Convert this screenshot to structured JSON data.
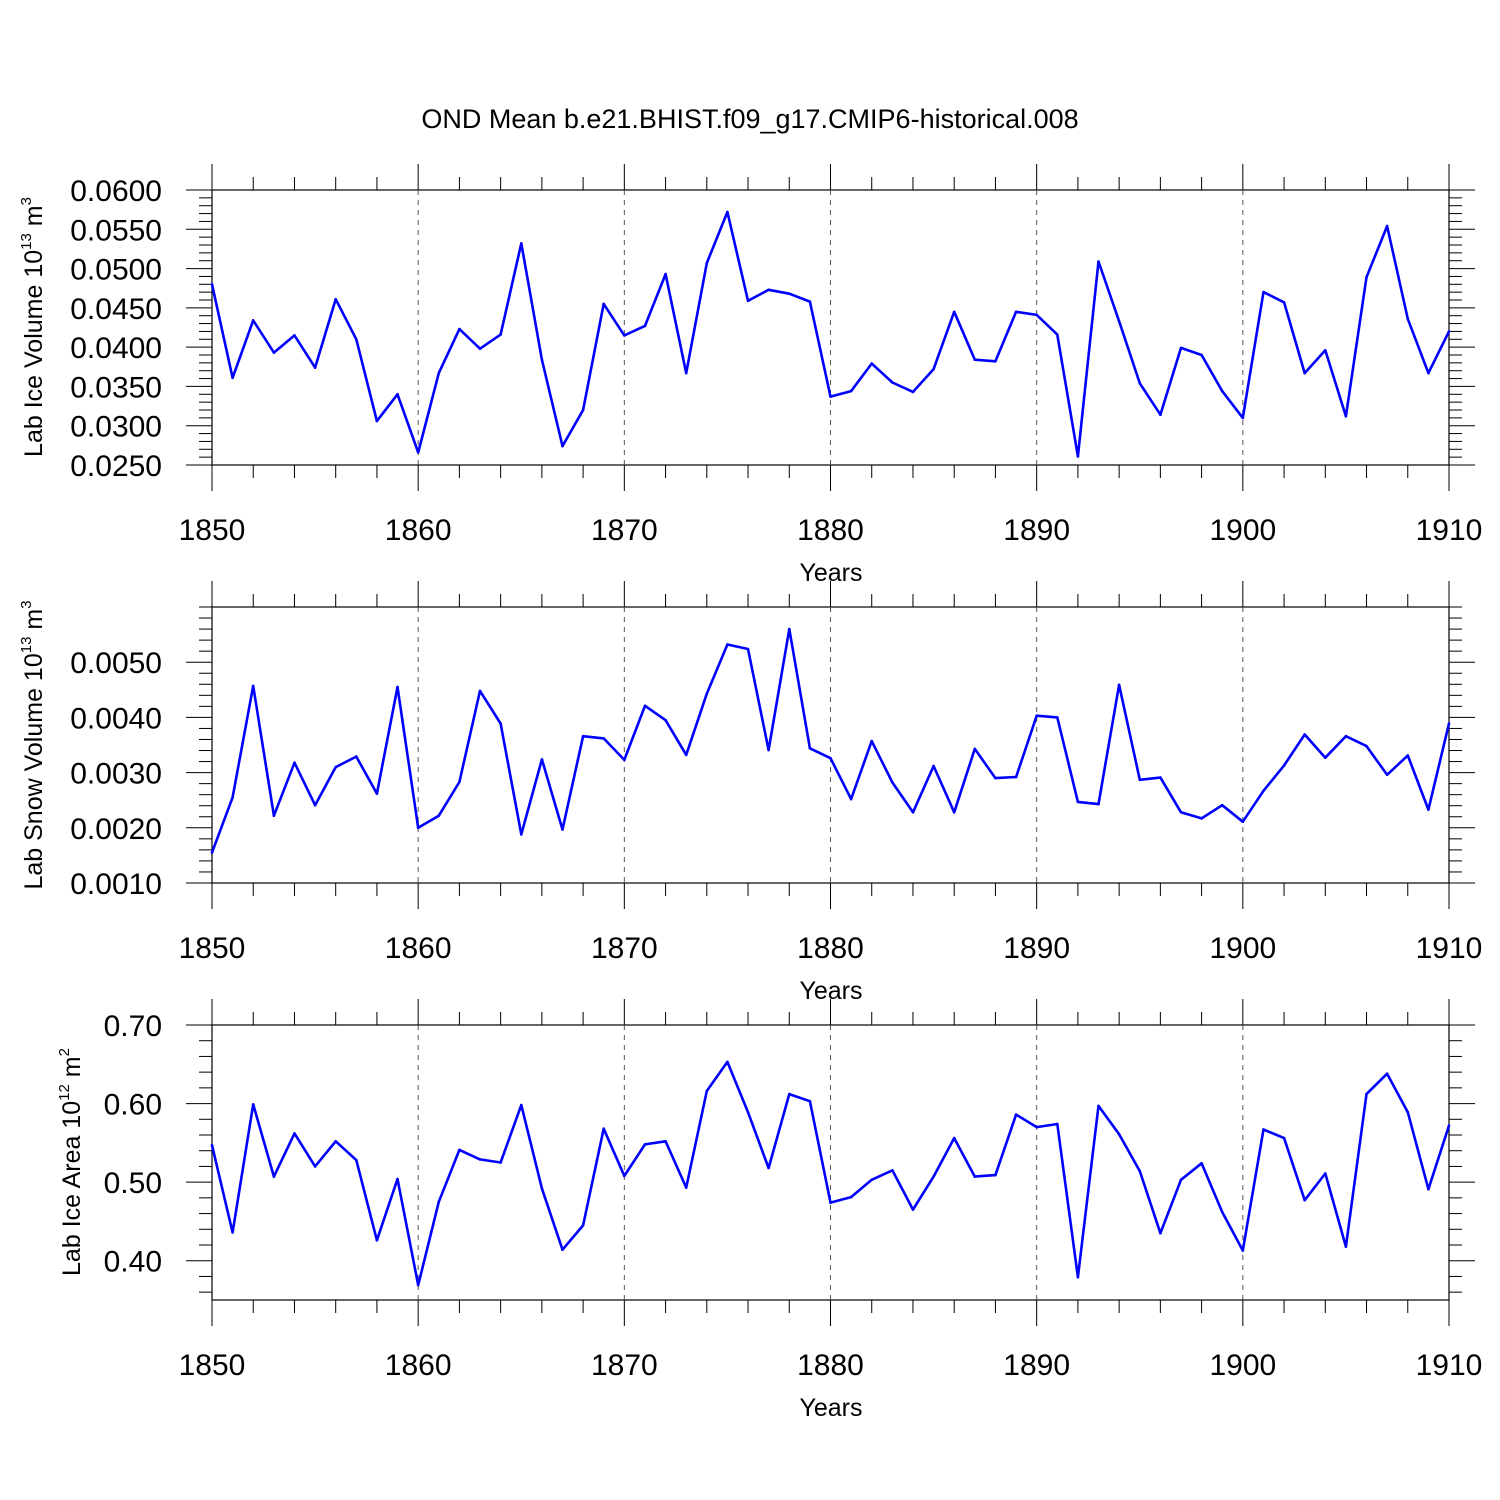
{
  "title": "OND Mean b.e21.BHIST.f09_g17.CMIP6-historical.008",
  "chart_data": [
    {
      "type": "line",
      "xlabel": "Years",
      "ylabel": {
        "prefix": "Lab Ice Volume 10",
        "exp1": "13",
        "mid": " m",
        "exp2": "3"
      },
      "xlim": [
        1850,
        1910
      ],
      "ylim": [
        0.025,
        0.06
      ],
      "xticks": [
        "1850",
        "1860",
        "1870",
        "1880",
        "1890",
        "1900",
        "1910"
      ],
      "yticks": [
        "0.0250",
        "0.0300",
        "0.0350",
        "0.0400",
        "0.0450",
        "0.0500",
        "0.0550",
        "0.0600"
      ],
      "grid": "vertical dashed at major x ticks",
      "color": "#0000ff",
      "x": [
        1850,
        1851,
        1852,
        1853,
        1854,
        1855,
        1856,
        1857,
        1858,
        1859,
        1860,
        1861,
        1862,
        1863,
        1864,
        1865,
        1866,
        1867,
        1868,
        1869,
        1870,
        1871,
        1872,
        1873,
        1874,
        1875,
        1876,
        1877,
        1878,
        1879,
        1880,
        1881,
        1882,
        1883,
        1884,
        1885,
        1886,
        1887,
        1888,
        1889,
        1890,
        1891,
        1892,
        1893,
        1894,
        1895,
        1896,
        1897,
        1898,
        1899,
        1900,
        1901,
        1902,
        1903,
        1904,
        1905,
        1906,
        1907,
        1908,
        1909,
        1910
      ],
      "values": [
        0.048,
        0.0361,
        0.0434,
        0.0393,
        0.0415,
        0.0374,
        0.0461,
        0.041,
        0.0306,
        0.034,
        0.0266,
        0.0367,
        0.0423,
        0.0398,
        0.0416,
        0.0532,
        0.0384,
        0.0274,
        0.032,
        0.0455,
        0.0415,
        0.0427,
        0.0493,
        0.0367,
        0.0507,
        0.0572,
        0.0459,
        0.0473,
        0.0468,
        0.0458,
        0.0337,
        0.0344,
        0.0379,
        0.0355,
        0.0343,
        0.0372,
        0.0445,
        0.0384,
        0.0382,
        0.0445,
        0.0441,
        0.0416,
        0.0261,
        0.0509,
        0.0433,
        0.0354,
        0.0314,
        0.0399,
        0.039,
        0.0344,
        0.031,
        0.047,
        0.0457,
        0.0367,
        0.0396,
        0.0312,
        0.0489,
        0.0554,
        0.0436,
        0.0367,
        0.042
      ]
    },
    {
      "type": "line",
      "xlabel": "Years",
      "ylabel": {
        "prefix": "Lab Snow Volume 10",
        "exp1": "13",
        "mid": " m",
        "exp2": "3"
      },
      "xlim": [
        1850,
        1910
      ],
      "ylim": [
        0.001,
        0.006
      ],
      "xticks": [
        "1850",
        "1860",
        "1870",
        "1880",
        "1890",
        "1900",
        "1910"
      ],
      "yticks": [
        "0.0010",
        "0.0020",
        "0.0030",
        "0.0040",
        "0.0050"
      ],
      "grid": "vertical dashed at major x ticks",
      "color": "#0000ff",
      "x": [
        1850,
        1851,
        1852,
        1853,
        1854,
        1855,
        1856,
        1857,
        1858,
        1859,
        1860,
        1861,
        1862,
        1863,
        1864,
        1865,
        1866,
        1867,
        1868,
        1869,
        1870,
        1871,
        1872,
        1873,
        1874,
        1875,
        1876,
        1877,
        1878,
        1879,
        1880,
        1881,
        1882,
        1883,
        1884,
        1885,
        1886,
        1887,
        1888,
        1889,
        1890,
        1891,
        1892,
        1893,
        1894,
        1895,
        1896,
        1897,
        1898,
        1899,
        1900,
        1901,
        1902,
        1903,
        1904,
        1905,
        1906,
        1907,
        1908,
        1909,
        1910
      ],
      "values": [
        0.00155,
        0.00255,
        0.00457,
        0.00222,
        0.00318,
        0.00241,
        0.0031,
        0.00329,
        0.00262,
        0.00455,
        0.002,
        0.00222,
        0.00283,
        0.00448,
        0.00389,
        0.00188,
        0.00324,
        0.00197,
        0.00366,
        0.00362,
        0.00323,
        0.00421,
        0.00395,
        0.00332,
        0.00443,
        0.00532,
        0.00524,
        0.00341,
        0.0056,
        0.00344,
        0.00326,
        0.00252,
        0.00357,
        0.00282,
        0.00228,
        0.00312,
        0.00228,
        0.00343,
        0.0029,
        0.00292,
        0.00403,
        0.004,
        0.00247,
        0.00243,
        0.00459,
        0.00287,
        0.00291,
        0.00228,
        0.00217,
        0.00241,
        0.00211,
        0.00267,
        0.00313,
        0.00369,
        0.00327,
        0.00366,
        0.00348,
        0.00296,
        0.00331,
        0.00233,
        0.00389
      ]
    },
    {
      "type": "line",
      "xlabel": "Years",
      "ylabel": {
        "prefix": "Lab Ice Area 10",
        "exp1": "12",
        "mid": " m",
        "exp2": "2"
      },
      "xlim": [
        1850,
        1910
      ],
      "ylim": [
        0.35,
        0.7
      ],
      "xticks": [
        "1850",
        "1860",
        "1870",
        "1880",
        "1890",
        "1900",
        "1910"
      ],
      "yticks": [
        "0.40",
        "0.50",
        "0.60",
        "0.70"
      ],
      "grid": "vertical dashed at major x ticks",
      "color": "#0000ff",
      "x": [
        1850,
        1851,
        1852,
        1853,
        1854,
        1855,
        1856,
        1857,
        1858,
        1859,
        1860,
        1861,
        1862,
        1863,
        1864,
        1865,
        1866,
        1867,
        1868,
        1869,
        1870,
        1871,
        1872,
        1873,
        1874,
        1875,
        1876,
        1877,
        1878,
        1879,
        1880,
        1881,
        1882,
        1883,
        1884,
        1885,
        1886,
        1887,
        1888,
        1889,
        1890,
        1891,
        1892,
        1893,
        1894,
        1895,
        1896,
        1897,
        1898,
        1899,
        1900,
        1901,
        1902,
        1903,
        1904,
        1905,
        1906,
        1907,
        1908,
        1909,
        1910
      ],
      "values": [
        0.547,
        0.436,
        0.599,
        0.507,
        0.562,
        0.52,
        0.552,
        0.528,
        0.426,
        0.504,
        0.369,
        0.475,
        0.541,
        0.529,
        0.525,
        0.598,
        0.492,
        0.414,
        0.445,
        0.568,
        0.508,
        0.548,
        0.552,
        0.493,
        0.616,
        0.653,
        0.589,
        0.518,
        0.612,
        0.603,
        0.474,
        0.481,
        0.503,
        0.515,
        0.465,
        0.507,
        0.556,
        0.507,
        0.509,
        0.586,
        0.57,
        0.574,
        0.379,
        0.597,
        0.561,
        0.514,
        0.435,
        0.503,
        0.524,
        0.462,
        0.413,
        0.567,
        0.556,
        0.477,
        0.511,
        0.418,
        0.612,
        0.638,
        0.589,
        0.491,
        0.572
      ]
    }
  ]
}
